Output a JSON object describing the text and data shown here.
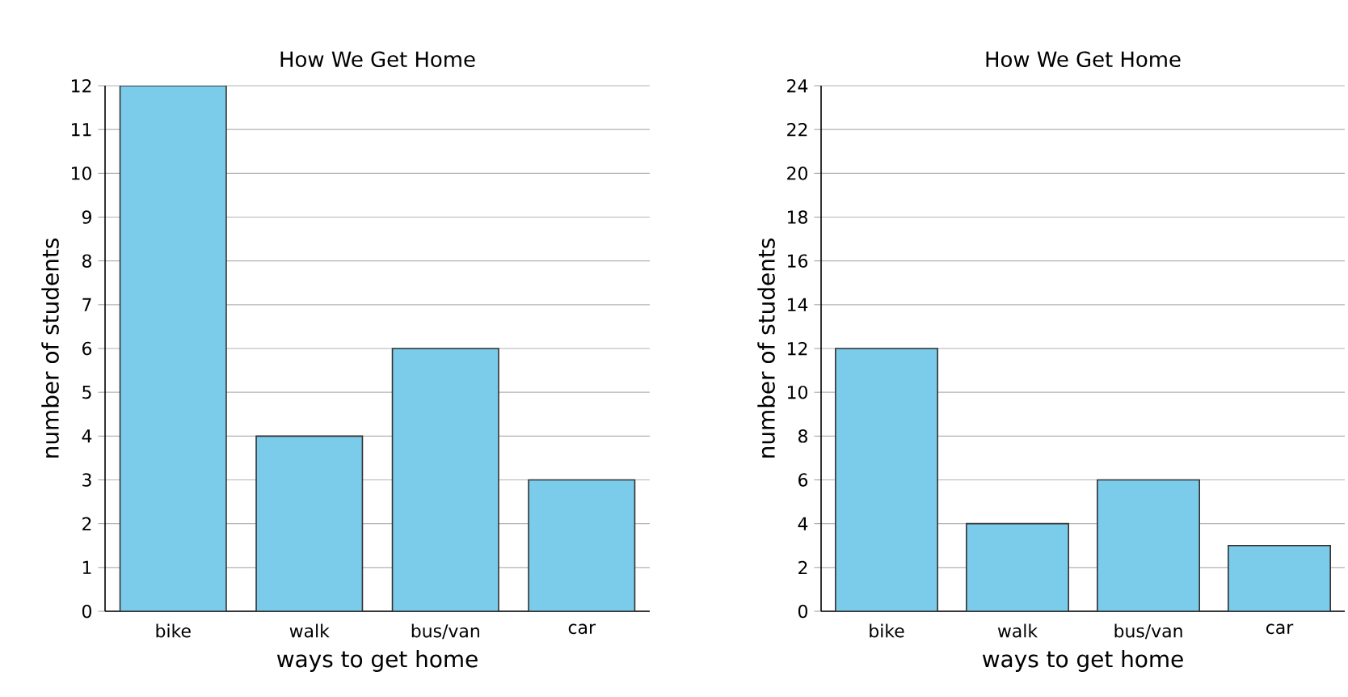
{
  "chart_data": [
    {
      "type": "bar",
      "title": "How We Get Home",
      "xlabel": "ways to get home",
      "ylabel": "number of students",
      "categories": [
        "bike",
        "walk",
        "bus/van",
        "car"
      ],
      "values": [
        12,
        4,
        6,
        3
      ],
      "color": "#7bcbea",
      "ylim": [
        0,
        12
      ],
      "yticks": [
        0,
        1,
        2,
        3,
        4,
        5,
        6,
        7,
        8,
        9,
        10,
        11,
        12
      ],
      "grid": "y"
    },
    {
      "type": "bar",
      "title": "How We Get Home",
      "xlabel": "ways to get home",
      "ylabel": "number of students",
      "categories": [
        "bike",
        "walk",
        "bus/van",
        "car"
      ],
      "values": [
        12,
        4,
        6,
        3
      ],
      "color": "#7bcbea",
      "ylim": [
        0,
        24
      ],
      "yticks": [
        0,
        2,
        4,
        6,
        8,
        10,
        12,
        14,
        16,
        18,
        20,
        22,
        24
      ],
      "grid": "y"
    }
  ]
}
